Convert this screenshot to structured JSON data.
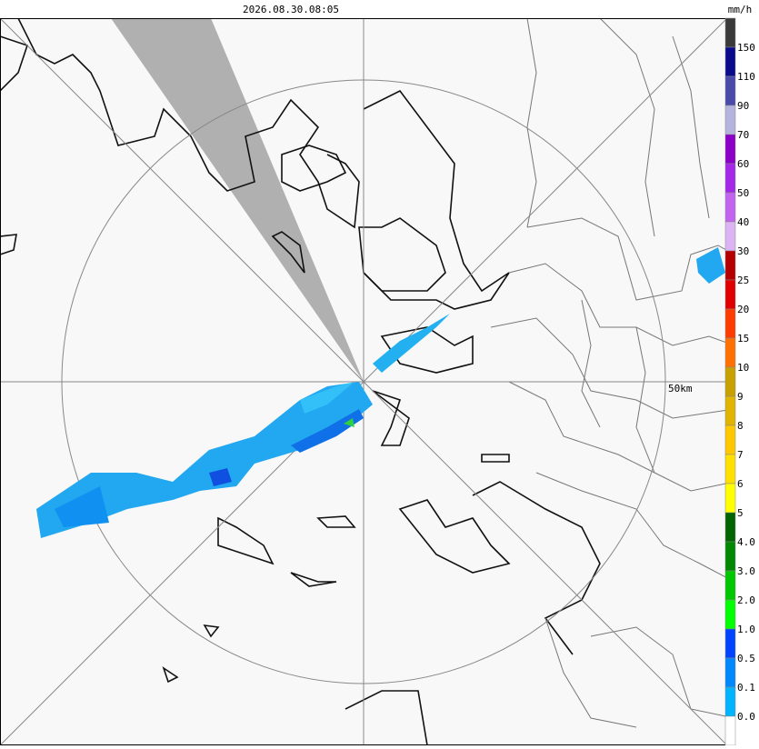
{
  "header": {
    "timestamp": "2026.08.30.08:05"
  },
  "legend": {
    "unit": "mm/h",
    "labels": [
      "150",
      "110",
      "90",
      "70",
      "60",
      "50",
      "40",
      "30",
      "25",
      "20",
      "15",
      "10",
      "9",
      "8",
      "7",
      "6",
      "5",
      "4.0",
      "3.0",
      "2.0",
      "1.0",
      "0.5",
      "0.1",
      "0.0"
    ],
    "colors": [
      "#3a3a3a",
      "#0a0a8c",
      "#4a4aaa",
      "#b4b4dc",
      "#8c00c8",
      "#a428e8",
      "#c264f0",
      "#dcb4f4",
      "#b40000",
      "#e00000",
      "#ff3c00",
      "#ff7000",
      "#c8a000",
      "#e0b400",
      "#ffc800",
      "#ffe000",
      "#ffff00",
      "#006400",
      "#008800",
      "#00c800",
      "#00ff00",
      "#0044ff",
      "#0088ff",
      "#00b4ff",
      "#ffffff"
    ]
  },
  "map": {
    "range_label": "50km"
  }
}
